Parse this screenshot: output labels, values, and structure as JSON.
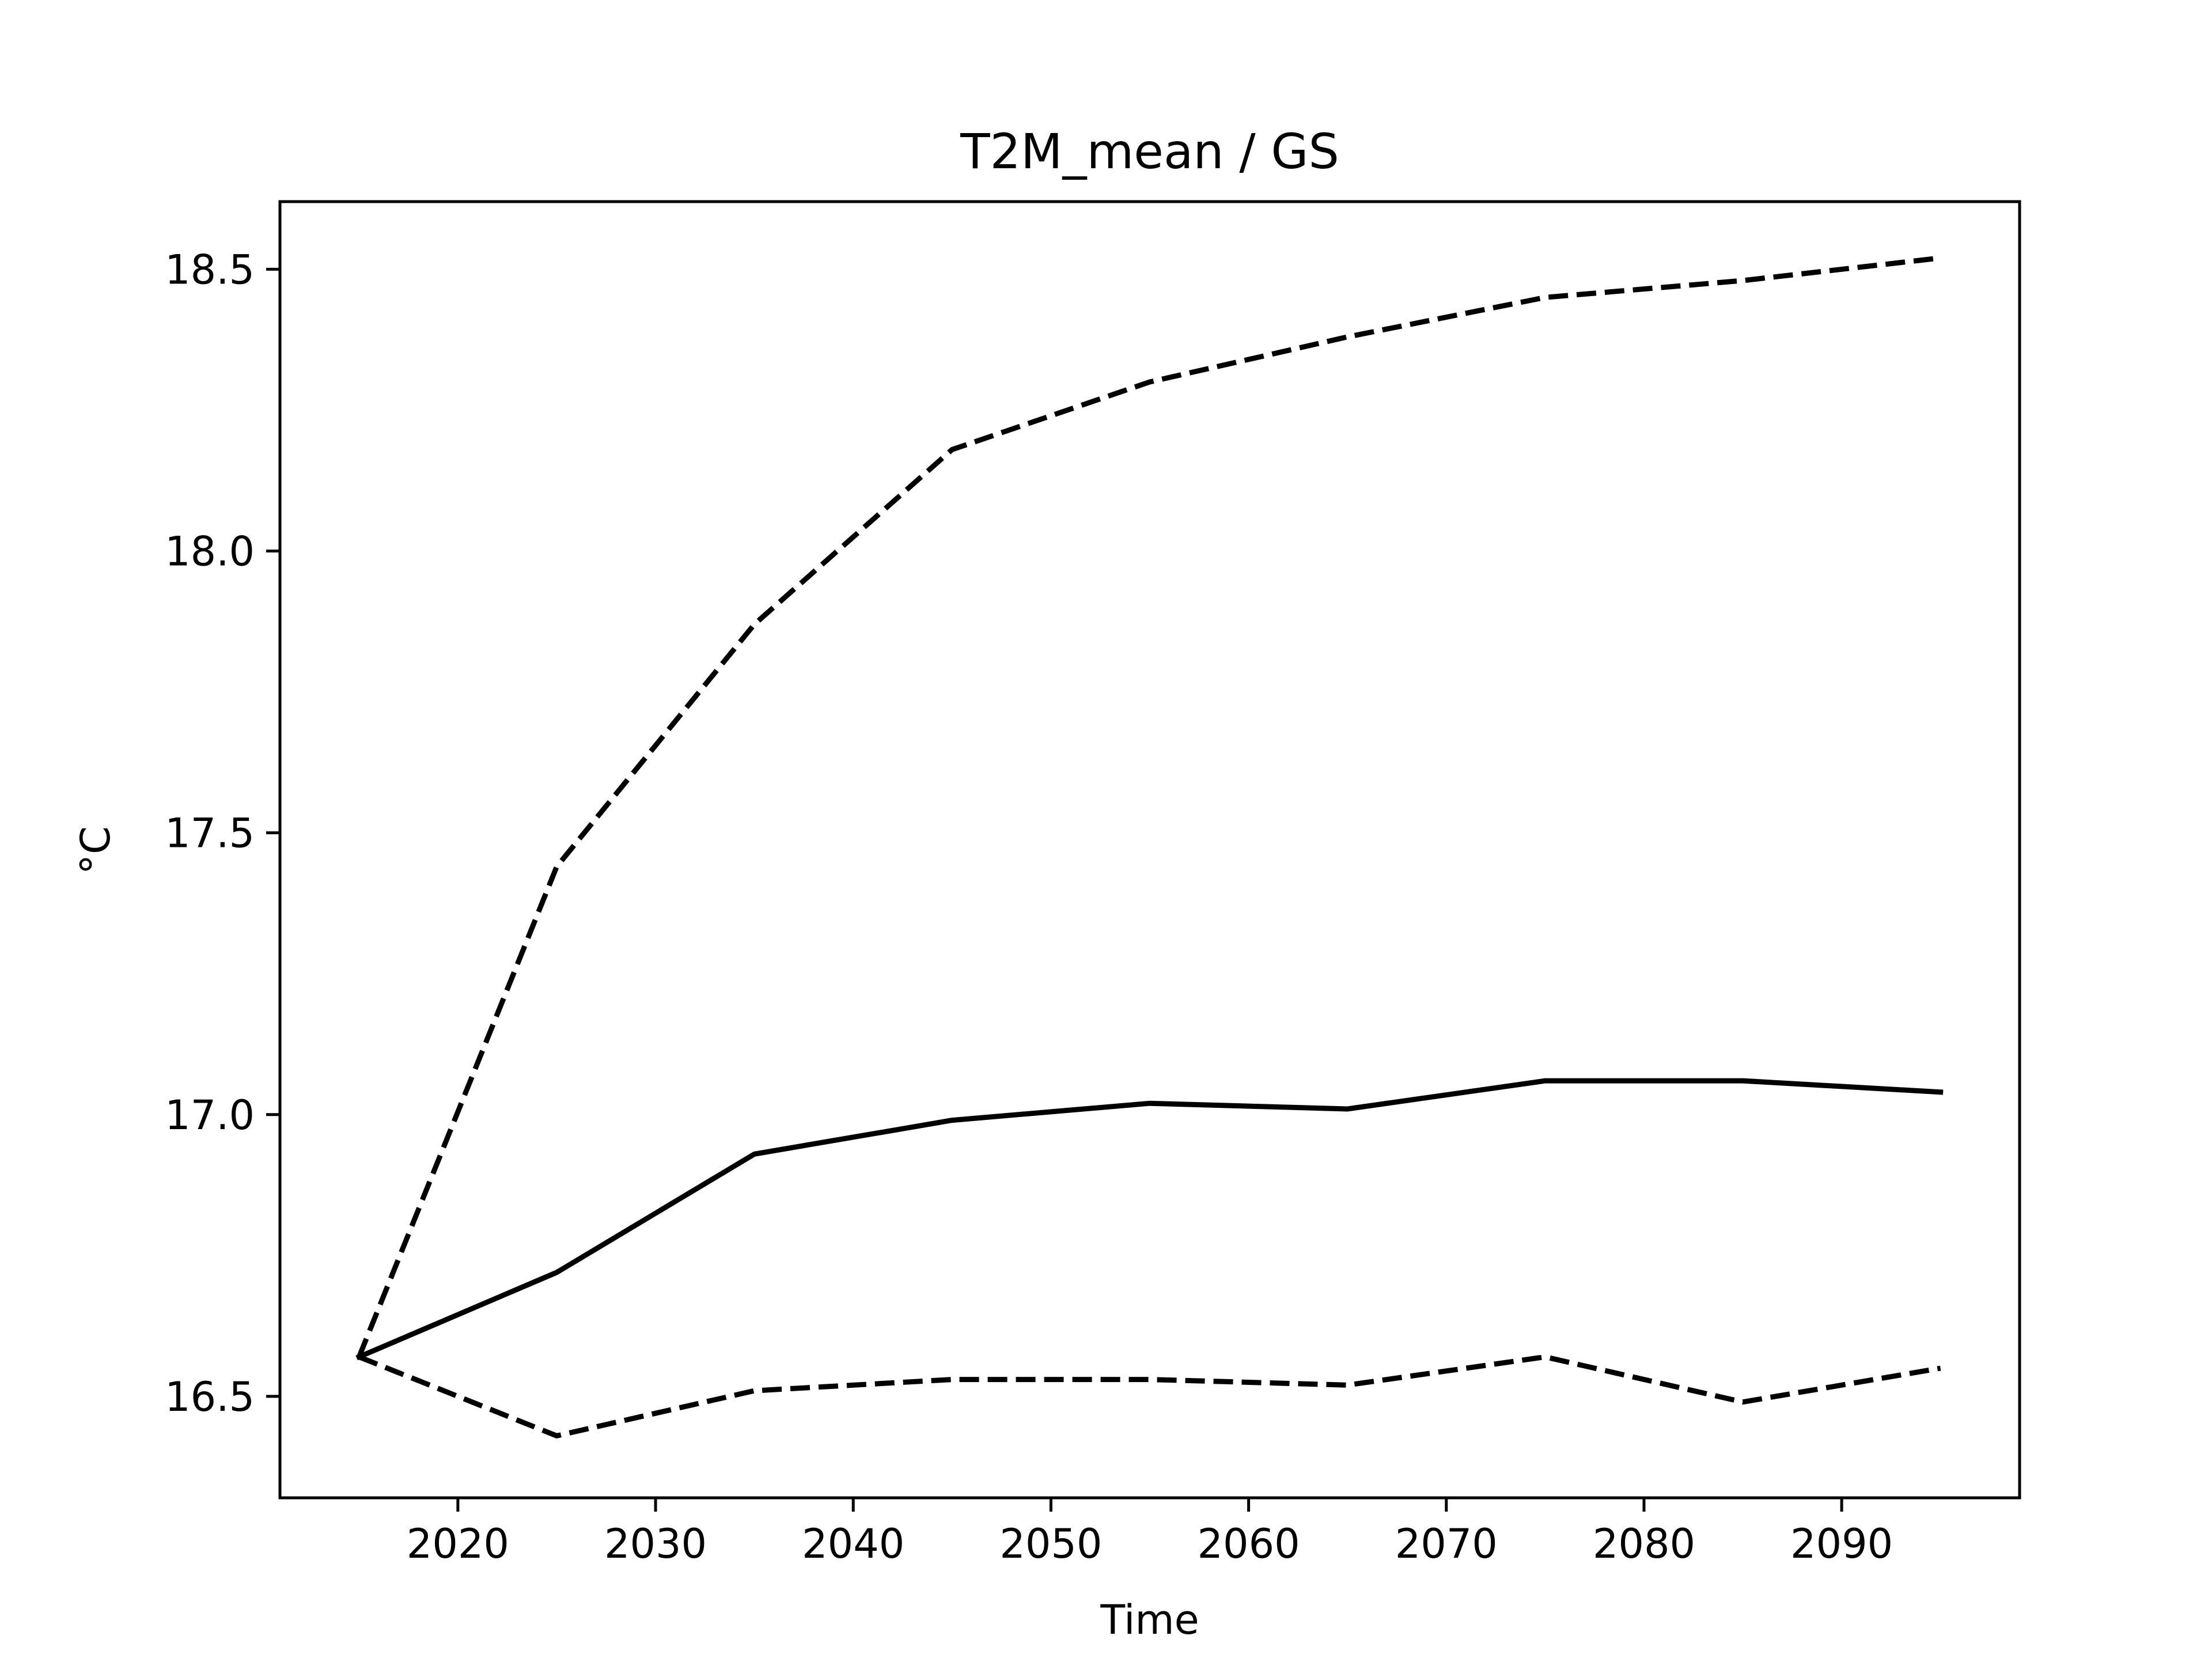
{
  "chart_data": {
    "type": "line",
    "title": "T2M_mean / GS",
    "xlabel": "Time",
    "ylabel": "°C",
    "xlim": [
      2011,
      2099
    ],
    "ylim": [
      16.32,
      18.62
    ],
    "xticks": [
      2020,
      2030,
      2040,
      2050,
      2060,
      2070,
      2080,
      2090
    ],
    "xtick_labels": [
      "2020",
      "2030",
      "2040",
      "2050",
      "2060",
      "2070",
      "2080",
      "2090"
    ],
    "yticks": [
      16.5,
      17.0,
      17.5,
      18.0,
      18.5
    ],
    "ytick_labels": [
      "16.5",
      "17.0",
      "17.5",
      "18.0",
      "18.5"
    ],
    "grid": false,
    "x": [
      2015,
      2025,
      2035,
      2045,
      2055,
      2065,
      2075,
      2085,
      2095
    ],
    "series": [
      {
        "style": "solid",
        "color": "#000000",
        "values": [
          16.57,
          16.72,
          16.93,
          16.99,
          17.02,
          17.01,
          17.06,
          17.06,
          17.04
        ]
      },
      {
        "style": "dashed",
        "color": "#000000",
        "values": [
          16.57,
          17.44,
          17.87,
          18.18,
          18.3,
          18.38,
          18.45,
          18.48,
          18.52
        ]
      },
      {
        "style": "dashed",
        "color": "#000000",
        "values": [
          16.57,
          16.43,
          16.51,
          16.53,
          16.53,
          16.52,
          16.57,
          16.49,
          16.55
        ]
      }
    ]
  }
}
